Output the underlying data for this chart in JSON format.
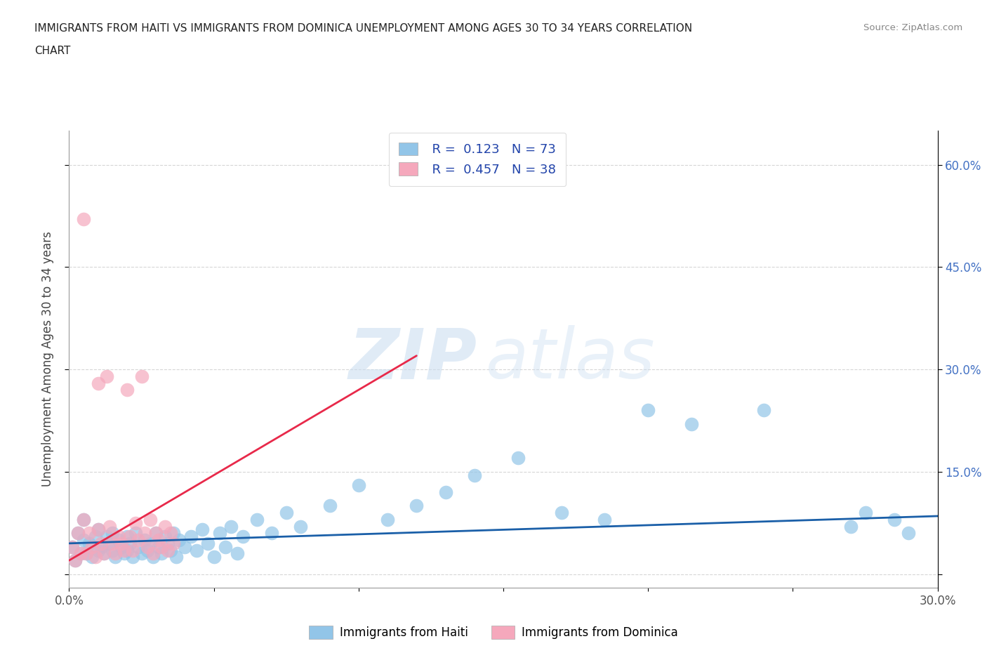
{
  "title_line1": "IMMIGRANTS FROM HAITI VS IMMIGRANTS FROM DOMINICA UNEMPLOYMENT AMONG AGES 30 TO 34 YEARS CORRELATION",
  "title_line2": "CHART",
  "source": "Source: ZipAtlas.com",
  "ylabel": "Unemployment Among Ages 30 to 34 years",
  "xlim": [
    0.0,
    0.3
  ],
  "ylim": [
    -0.02,
    0.65
  ],
  "x_ticks": [
    0.0,
    0.05,
    0.1,
    0.15,
    0.2,
    0.25,
    0.3
  ],
  "x_tick_labels": [
    "0.0%",
    "",
    "",
    "",
    "",
    "",
    "30.0%"
  ],
  "y_ticks": [
    0.0,
    0.15,
    0.3,
    0.45,
    0.6
  ],
  "y_tick_labels_right": [
    "",
    "15.0%",
    "30.0%",
    "45.0%",
    "60.0%"
  ],
  "haiti_color": "#92C5E8",
  "dominica_color": "#F5A8BC",
  "haiti_edge_color": "#92C5E8",
  "dominica_edge_color": "#F5A8BC",
  "haiti_line_color": "#1A5FA8",
  "dominica_line_color": "#E8294A",
  "haiti_R": 0.123,
  "haiti_N": 73,
  "dominica_R": 0.457,
  "dominica_N": 38,
  "legend_label_haiti": "Immigrants from Haiti",
  "legend_label_dominica": "Immigrants from Dominica",
  "watermark_zip": "ZIP",
  "watermark_atlas": "atlas",
  "background_color": "#ffffff",
  "haiti_x": [
    0.001,
    0.002,
    0.003,
    0.004,
    0.005,
    0.005,
    0.006,
    0.007,
    0.008,
    0.009,
    0.01,
    0.01,
    0.011,
    0.012,
    0.013,
    0.014,
    0.015,
    0.015,
    0.016,
    0.017,
    0.018,
    0.019,
    0.02,
    0.02,
    0.021,
    0.022,
    0.023,
    0.024,
    0.025,
    0.026,
    0.027,
    0.028,
    0.029,
    0.03,
    0.031,
    0.032,
    0.033,
    0.034,
    0.035,
    0.036,
    0.037,
    0.038,
    0.04,
    0.042,
    0.044,
    0.046,
    0.048,
    0.05,
    0.052,
    0.054,
    0.056,
    0.058,
    0.06,
    0.065,
    0.07,
    0.075,
    0.08,
    0.09,
    0.1,
    0.11,
    0.12,
    0.13,
    0.14,
    0.155,
    0.17,
    0.185,
    0.2,
    0.215,
    0.24,
    0.27,
    0.275,
    0.285,
    0.29
  ],
  "haiti_y": [
    0.04,
    0.02,
    0.06,
    0.03,
    0.05,
    0.08,
    0.03,
    0.045,
    0.025,
    0.055,
    0.035,
    0.065,
    0.04,
    0.03,
    0.055,
    0.045,
    0.035,
    0.06,
    0.025,
    0.05,
    0.04,
    0.03,
    0.055,
    0.035,
    0.045,
    0.025,
    0.06,
    0.04,
    0.03,
    0.05,
    0.035,
    0.045,
    0.025,
    0.06,
    0.04,
    0.03,
    0.055,
    0.045,
    0.035,
    0.06,
    0.025,
    0.05,
    0.04,
    0.055,
    0.035,
    0.065,
    0.045,
    0.025,
    0.06,
    0.04,
    0.07,
    0.03,
    0.055,
    0.08,
    0.06,
    0.09,
    0.07,
    0.1,
    0.13,
    0.08,
    0.1,
    0.12,
    0.145,
    0.17,
    0.09,
    0.08,
    0.24,
    0.22,
    0.24,
    0.07,
    0.09,
    0.08,
    0.06
  ],
  "dominica_x": [
    0.001,
    0.002,
    0.003,
    0.004,
    0.005,
    0.005,
    0.006,
    0.007,
    0.008,
    0.009,
    0.01,
    0.01,
    0.011,
    0.012,
    0.013,
    0.014,
    0.015,
    0.016,
    0.017,
    0.018,
    0.019,
    0.02,
    0.021,
    0.022,
    0.023,
    0.024,
    0.025,
    0.026,
    0.027,
    0.028,
    0.029,
    0.03,
    0.031,
    0.032,
    0.033,
    0.034,
    0.035,
    0.036
  ],
  "dominica_y": [
    0.04,
    0.02,
    0.06,
    0.03,
    0.52,
    0.08,
    0.03,
    0.06,
    0.04,
    0.025,
    0.28,
    0.065,
    0.045,
    0.03,
    0.29,
    0.07,
    0.045,
    0.03,
    0.055,
    0.045,
    0.035,
    0.27,
    0.055,
    0.035,
    0.075,
    0.05,
    0.29,
    0.06,
    0.04,
    0.08,
    0.03,
    0.06,
    0.05,
    0.04,
    0.07,
    0.035,
    0.06,
    0.045
  ],
  "haiti_trend_x": [
    0.0,
    0.3
  ],
  "haiti_trend_y": [
    0.045,
    0.085
  ],
  "dominica_trend_x": [
    0.0,
    0.12
  ],
  "dominica_trend_y": [
    0.02,
    0.32
  ]
}
